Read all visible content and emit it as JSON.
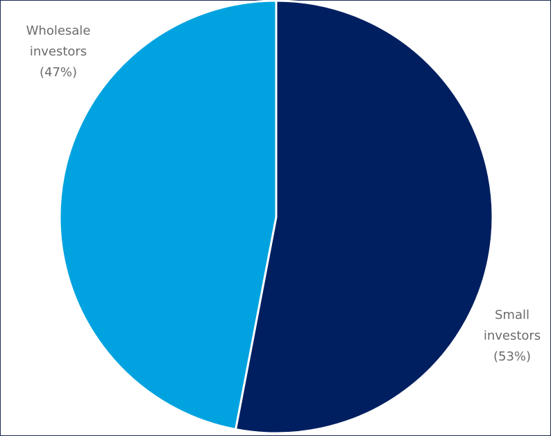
{
  "chart_data": {
    "type": "pie",
    "categories": [
      "Small investors",
      "Wholesale investors"
    ],
    "values": [
      53,
      47
    ],
    "value_labels": [
      "(53%)",
      "(47%)"
    ],
    "colors": [
      "#001f60",
      "#00a3df"
    ]
  }
}
